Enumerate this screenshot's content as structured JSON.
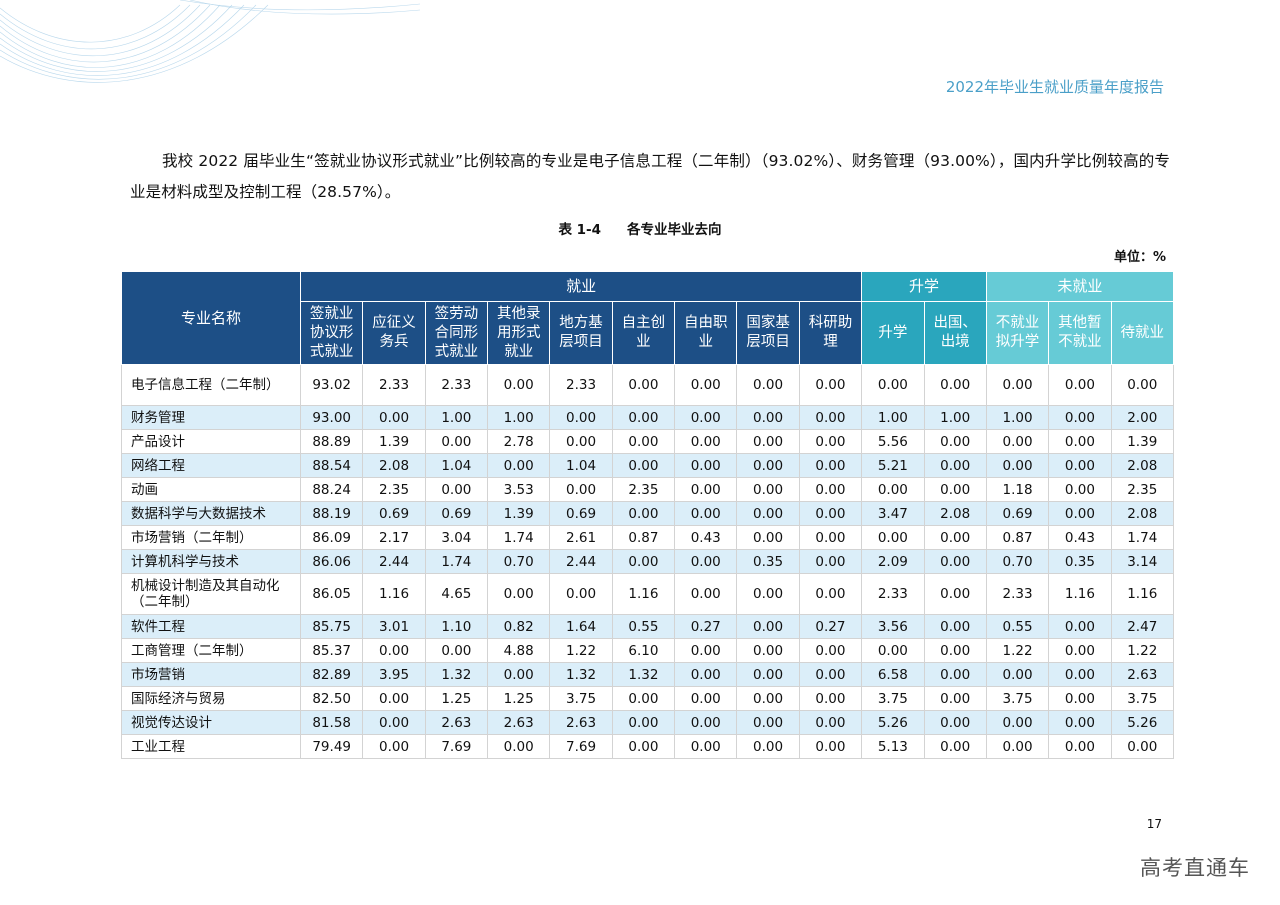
{
  "header": {
    "report_title": "2022年毕业生就业质量年度报告"
  },
  "paragraph": "我校 2022 届毕业生“签就业协议形式就业”比例较高的专业是电子信息工程（二年制）（93.02%）、财务管理（93.00%），国内升学比例较高的专业是材料成型及控制工程（28.57%）。",
  "table_caption": {
    "number": "表 1-4",
    "title": "各专业毕业去向"
  },
  "unit": "单位：%",
  "table": {
    "name_header": "专业名称",
    "groups": {
      "employment": "就业",
      "further_study": "升学",
      "unemployed": "未就业"
    },
    "columns": [
      "签就业\n协议形\n式就业",
      "应征义\n务兵",
      "签劳动\n合同形\n式就业",
      "其他录\n用形式\n就业",
      "地方基\n层项目",
      "自主创\n业",
      "自由职\n业",
      "国家基\n层项目",
      "科研助\n理",
      "升学",
      "出国、\n出境",
      "不就业\n拟升学",
      "其他暂\n不就业",
      "待就业"
    ],
    "rows": [
      {
        "name": "电子信息工程（二年制）",
        "values": [
          "93.02",
          "2.33",
          "2.33",
          "0.00",
          "2.33",
          "0.00",
          "0.00",
          "0.00",
          "0.00",
          "0.00",
          "0.00",
          "0.00",
          "0.00",
          "0.00"
        ]
      },
      {
        "name": "财务管理",
        "values": [
          "93.00",
          "0.00",
          "1.00",
          "1.00",
          "0.00",
          "0.00",
          "0.00",
          "0.00",
          "0.00",
          "1.00",
          "1.00",
          "1.00",
          "0.00",
          "2.00"
        ]
      },
      {
        "name": "产品设计",
        "values": [
          "88.89",
          "1.39",
          "0.00",
          "2.78",
          "0.00",
          "0.00",
          "0.00",
          "0.00",
          "0.00",
          "5.56",
          "0.00",
          "0.00",
          "0.00",
          "1.39"
        ]
      },
      {
        "name": "网络工程",
        "values": [
          "88.54",
          "2.08",
          "1.04",
          "0.00",
          "1.04",
          "0.00",
          "0.00",
          "0.00",
          "0.00",
          "5.21",
          "0.00",
          "0.00",
          "0.00",
          "2.08"
        ]
      },
      {
        "name": "动画",
        "values": [
          "88.24",
          "2.35",
          "0.00",
          "3.53",
          "0.00",
          "2.35",
          "0.00",
          "0.00",
          "0.00",
          "0.00",
          "0.00",
          "1.18",
          "0.00",
          "2.35"
        ]
      },
      {
        "name": "数据科学与大数据技术",
        "values": [
          "88.19",
          "0.69",
          "0.69",
          "1.39",
          "0.69",
          "0.00",
          "0.00",
          "0.00",
          "0.00",
          "3.47",
          "2.08",
          "0.69",
          "0.00",
          "2.08"
        ]
      },
      {
        "name": "市场营销（二年制）",
        "values": [
          "86.09",
          "2.17",
          "3.04",
          "1.74",
          "2.61",
          "0.87",
          "0.43",
          "0.00",
          "0.00",
          "0.00",
          "0.00",
          "0.87",
          "0.43",
          "1.74"
        ]
      },
      {
        "name": "计算机科学与技术",
        "values": [
          "86.06",
          "2.44",
          "1.74",
          "0.70",
          "2.44",
          "0.00",
          "0.00",
          "0.35",
          "0.00",
          "2.09",
          "0.00",
          "0.70",
          "0.35",
          "3.14"
        ]
      },
      {
        "name": "机械设计制造及其自动化（二年制）",
        "values": [
          "86.05",
          "1.16",
          "4.65",
          "0.00",
          "0.00",
          "1.16",
          "0.00",
          "0.00",
          "0.00",
          "2.33",
          "0.00",
          "2.33",
          "1.16",
          "1.16"
        ]
      },
      {
        "name": "软件工程",
        "values": [
          "85.75",
          "3.01",
          "1.10",
          "0.82",
          "1.64",
          "0.55",
          "0.27",
          "0.00",
          "0.27",
          "3.56",
          "0.00",
          "0.55",
          "0.00",
          "2.47"
        ]
      },
      {
        "name": "工商管理（二年制）",
        "values": [
          "85.37",
          "0.00",
          "0.00",
          "4.88",
          "1.22",
          "6.10",
          "0.00",
          "0.00",
          "0.00",
          "0.00",
          "0.00",
          "1.22",
          "0.00",
          "1.22"
        ]
      },
      {
        "name": "市场营销",
        "values": [
          "82.89",
          "3.95",
          "1.32",
          "0.00",
          "1.32",
          "1.32",
          "0.00",
          "0.00",
          "0.00",
          "6.58",
          "0.00",
          "0.00",
          "0.00",
          "2.63"
        ]
      },
      {
        "name": "国际经济与贸易",
        "values": [
          "82.50",
          "0.00",
          "1.25",
          "1.25",
          "3.75",
          "0.00",
          "0.00",
          "0.00",
          "0.00",
          "3.75",
          "0.00",
          "3.75",
          "0.00",
          "3.75"
        ]
      },
      {
        "name": "视觉传达设计",
        "values": [
          "81.58",
          "0.00",
          "2.63",
          "2.63",
          "2.63",
          "0.00",
          "0.00",
          "0.00",
          "0.00",
          "5.26",
          "0.00",
          "0.00",
          "0.00",
          "5.26"
        ]
      },
      {
        "name": "工业工程",
        "values": [
          "79.49",
          "0.00",
          "7.69",
          "0.00",
          "7.69",
          "0.00",
          "0.00",
          "0.00",
          "0.00",
          "5.13",
          "0.00",
          "0.00",
          "0.00",
          "0.00"
        ]
      }
    ]
  },
  "page_number": "17",
  "watermark": "高考直通车",
  "colors": {
    "header_navy": "#1d4f86",
    "header_teal": "#2aa6bd",
    "header_cyan": "#66cbd6",
    "row_stripe": "#dbeef9",
    "title_blue": "#4a9fc8"
  }
}
